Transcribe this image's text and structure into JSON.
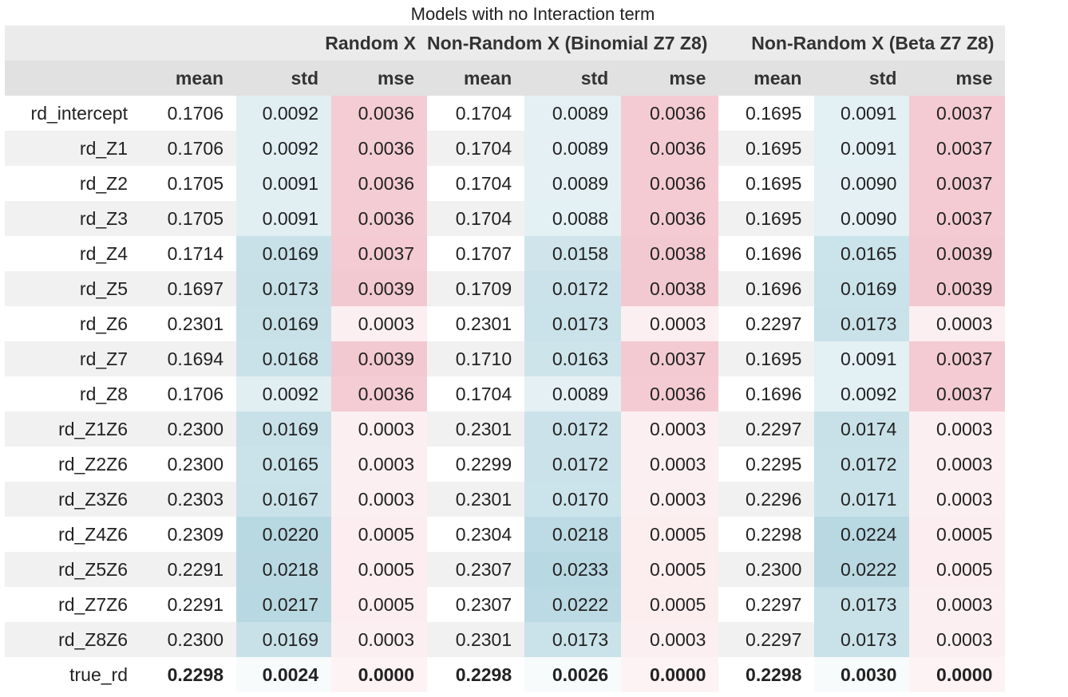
{
  "caption": "Models with no Interaction term",
  "groups": [
    "Random X",
    "Non-Random X (Binomial Z7 Z8)",
    "Non-Random X (Beta Z7 Z8)"
  ],
  "sub_headers": [
    "mean",
    "std",
    "mse"
  ],
  "colors": {
    "std_low": "#f7fbfc",
    "std_high": "#b8d8e2",
    "mse_low": "#fdf2f4",
    "mse_high": "#f3c9d1"
  },
  "rows": [
    {
      "label": "rd_intercept",
      "values": [
        "0.1706",
        "0.0092",
        "0.0036",
        "0.1704",
        "0.0089",
        "0.0036",
        "0.1695",
        "0.0091",
        "0.0037"
      ]
    },
    {
      "label": "rd_Z1",
      "values": [
        "0.1706",
        "0.0092",
        "0.0036",
        "0.1704",
        "0.0089",
        "0.0036",
        "0.1695",
        "0.0091",
        "0.0037"
      ]
    },
    {
      "label": "rd_Z2",
      "values": [
        "0.1705",
        "0.0091",
        "0.0036",
        "0.1704",
        "0.0089",
        "0.0036",
        "0.1695",
        "0.0090",
        "0.0037"
      ]
    },
    {
      "label": "rd_Z3",
      "values": [
        "0.1705",
        "0.0091",
        "0.0036",
        "0.1704",
        "0.0088",
        "0.0036",
        "0.1695",
        "0.0090",
        "0.0037"
      ]
    },
    {
      "label": "rd_Z4",
      "values": [
        "0.1714",
        "0.0169",
        "0.0037",
        "0.1707",
        "0.0158",
        "0.0038",
        "0.1696",
        "0.0165",
        "0.0039"
      ]
    },
    {
      "label": "rd_Z5",
      "values": [
        "0.1697",
        "0.0173",
        "0.0039",
        "0.1709",
        "0.0172",
        "0.0038",
        "0.1696",
        "0.0169",
        "0.0039"
      ]
    },
    {
      "label": "rd_Z6",
      "values": [
        "0.2301",
        "0.0169",
        "0.0003",
        "0.2301",
        "0.0173",
        "0.0003",
        "0.2297",
        "0.0173",
        "0.0003"
      ]
    },
    {
      "label": "rd_Z7",
      "values": [
        "0.1694",
        "0.0168",
        "0.0039",
        "0.1710",
        "0.0163",
        "0.0037",
        "0.1695",
        "0.0091",
        "0.0037"
      ]
    },
    {
      "label": "rd_Z8",
      "values": [
        "0.1706",
        "0.0092",
        "0.0036",
        "0.1704",
        "0.0089",
        "0.0036",
        "0.1696",
        "0.0092",
        "0.0037"
      ]
    },
    {
      "label": "rd_Z1Z6",
      "values": [
        "0.2300",
        "0.0169",
        "0.0003",
        "0.2301",
        "0.0172",
        "0.0003",
        "0.2297",
        "0.0174",
        "0.0003"
      ]
    },
    {
      "label": "rd_Z2Z6",
      "values": [
        "0.2300",
        "0.0165",
        "0.0003",
        "0.2299",
        "0.0172",
        "0.0003",
        "0.2295",
        "0.0172",
        "0.0003"
      ]
    },
    {
      "label": "rd_Z3Z6",
      "values": [
        "0.2303",
        "0.0167",
        "0.0003",
        "0.2301",
        "0.0170",
        "0.0003",
        "0.2296",
        "0.0171",
        "0.0003"
      ]
    },
    {
      "label": "rd_Z4Z6",
      "values": [
        "0.2309",
        "0.0220",
        "0.0005",
        "0.2304",
        "0.0218",
        "0.0005",
        "0.2298",
        "0.0224",
        "0.0005"
      ]
    },
    {
      "label": "rd_Z5Z6",
      "values": [
        "0.2291",
        "0.0218",
        "0.0005",
        "0.2307",
        "0.0233",
        "0.0005",
        "0.2300",
        "0.0222",
        "0.0005"
      ]
    },
    {
      "label": "rd_Z7Z6",
      "values": [
        "0.2291",
        "0.0217",
        "0.0005",
        "0.2307",
        "0.0222",
        "0.0005",
        "0.2297",
        "0.0173",
        "0.0003"
      ]
    },
    {
      "label": "rd_Z8Z6",
      "values": [
        "0.2300",
        "0.0169",
        "0.0003",
        "0.2301",
        "0.0173",
        "0.0003",
        "0.2297",
        "0.0173",
        "0.0003"
      ]
    },
    {
      "label": "true_rd",
      "values": [
        "0.2298",
        "0.0024",
        "0.0000",
        "0.2298",
        "0.0026",
        "0.0000",
        "0.2298",
        "0.0030",
        "0.0000"
      ],
      "bold": true
    }
  ]
}
